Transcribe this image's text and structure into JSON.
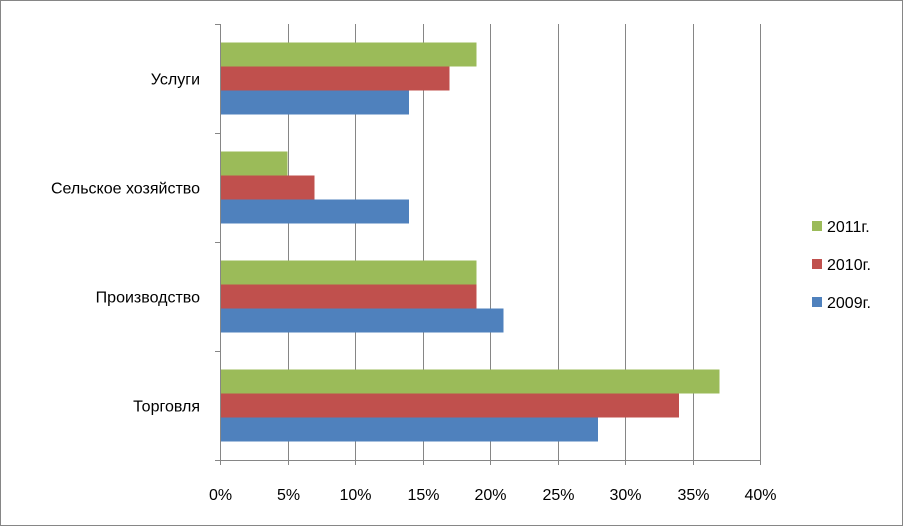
{
  "chart_data": {
    "type": "bar",
    "orientation": "horizontal",
    "categories": [
      "Торговля",
      "Производство",
      "Сельское хозяйство",
      "Услуги"
    ],
    "series": [
      {
        "name": "2009г.",
        "color": "#4F81BD",
        "values": [
          28,
          21,
          14,
          14
        ]
      },
      {
        "name": "2010г.",
        "color": "#C0504D",
        "values": [
          34,
          19,
          7,
          17
        ]
      },
      {
        "name": "2011г.",
        "color": "#9BBB59",
        "values": [
          37,
          19,
          5,
          19
        ]
      }
    ],
    "x_ticks": [
      "0%",
      "5%",
      "10%",
      "15%",
      "20%",
      "25%",
      "30%",
      "35%",
      "40%"
    ],
    "xlim": [
      0,
      40
    ],
    "x_unit": "%",
    "grid": "vertical major gridlines",
    "legend_position": "right",
    "legend_order": [
      "2011г.",
      "2010г.",
      "2009г."
    ]
  }
}
